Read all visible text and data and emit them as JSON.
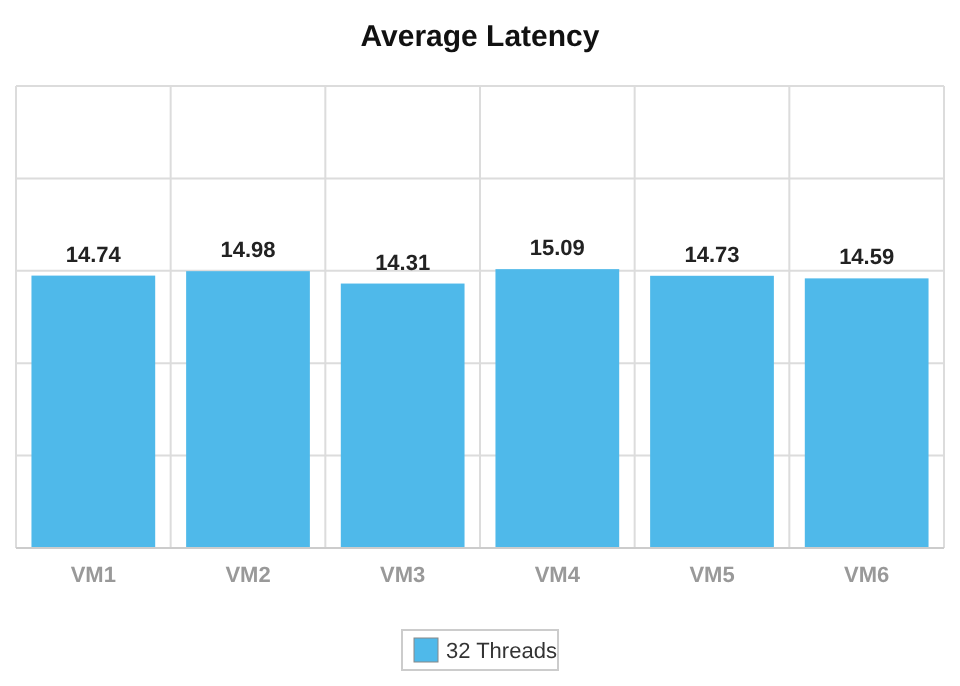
{
  "chart_data": {
    "type": "bar",
    "title": "Average Latency",
    "categories": [
      "VM1",
      "VM2",
      "VM3",
      "VM4",
      "VM5",
      "VM6"
    ],
    "series": [
      {
        "name": "32 Threads",
        "color": "#4fb9ea",
        "values": [
          14.74,
          14.98,
          14.31,
          15.09,
          14.73,
          14.59
        ]
      }
    ],
    "ylim": [
      0,
      25
    ],
    "yticks": [
      {
        "value": 0,
        "label": null
      },
      {
        "value": 5,
        "label": null
      },
      {
        "value": 10,
        "label": null
      },
      {
        "value": 15,
        "label": null
      },
      {
        "value": 20,
        "label": null
      },
      {
        "value": 25,
        "label": null
      }
    ],
    "tick_labels": "x",
    "grid": true,
    "legend": "bottom",
    "data_labels": true
  }
}
